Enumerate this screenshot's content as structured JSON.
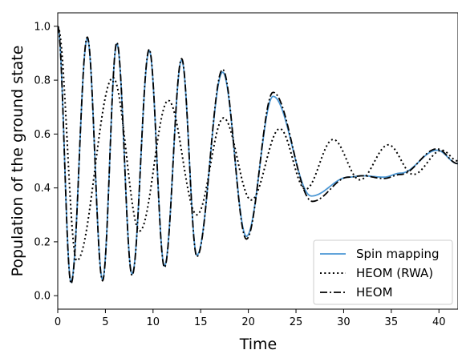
{
  "chart_data": {
    "type": "line",
    "title": "",
    "xlabel": "Time",
    "ylabel": "Population of the ground state",
    "xlim": [
      0,
      42
    ],
    "ylim": [
      -0.05,
      1.05
    ],
    "xticks": [
      "0",
      "5",
      "10",
      "15",
      "20",
      "25",
      "30",
      "35",
      "40"
    ],
    "yticks": [
      "0.0",
      "0.2",
      "0.4",
      "0.6",
      "0.8",
      "1.0"
    ],
    "grid": false,
    "legend_position": "lower-right",
    "colors": {
      "spin_mapping": "#4c97d4",
      "heom_rwa": "#000000",
      "heom": "#000000"
    },
    "series": [
      {
        "name": "Spin mapping",
        "style": "solid",
        "peaks": [
          [
            0,
            1.0
          ],
          [
            1.4,
            0.05
          ],
          [
            3.1,
            0.955
          ],
          [
            4.7,
            0.06
          ],
          [
            6.2,
            0.935
          ],
          [
            7.8,
            0.08
          ],
          [
            9.6,
            0.91
          ],
          [
            11.2,
            0.11
          ],
          [
            13.0,
            0.875
          ],
          [
            14.6,
            0.15
          ],
          [
            17.3,
            0.83
          ],
          [
            19.8,
            0.22
          ],
          [
            22.6,
            0.74
          ],
          [
            26.6,
            0.37
          ],
          [
            30.5,
            0.44
          ],
          [
            32.0,
            0.445
          ],
          [
            34.2,
            0.44
          ],
          [
            36.0,
            0.455
          ],
          [
            39.8,
            0.54
          ],
          [
            42.0,
            0.49
          ]
        ]
      },
      {
        "name": "HEOM (RWA)",
        "style": "dotted",
        "peaks": [
          [
            0,
            1.0
          ],
          [
            2.0,
            0.13
          ],
          [
            5.8,
            0.81
          ],
          [
            8.6,
            0.24
          ],
          [
            11.6,
            0.725
          ],
          [
            14.6,
            0.3
          ],
          [
            17.4,
            0.66
          ],
          [
            20.3,
            0.355
          ],
          [
            23.3,
            0.62
          ],
          [
            26.0,
            0.395
          ],
          [
            28.9,
            0.58
          ],
          [
            31.7,
            0.43
          ],
          [
            34.7,
            0.56
          ],
          [
            37.3,
            0.45
          ],
          [
            40.3,
            0.54
          ],
          [
            42.0,
            0.5
          ]
        ]
      },
      {
        "name": "HEOM",
        "style": "dashdot",
        "peaks": [
          [
            0,
            1.0
          ],
          [
            1.4,
            0.045
          ],
          [
            3.1,
            0.96
          ],
          [
            4.7,
            0.055
          ],
          [
            6.2,
            0.94
          ],
          [
            7.8,
            0.075
          ],
          [
            9.6,
            0.915
          ],
          [
            11.2,
            0.105
          ],
          [
            13.0,
            0.88
          ],
          [
            14.6,
            0.145
          ],
          [
            17.3,
            0.84
          ],
          [
            19.8,
            0.21
          ],
          [
            22.6,
            0.755
          ],
          [
            26.7,
            0.35
          ],
          [
            30.5,
            0.44
          ],
          [
            32.0,
            0.445
          ],
          [
            34.2,
            0.435
          ],
          [
            36.0,
            0.45
          ],
          [
            39.8,
            0.545
          ],
          [
            42.0,
            0.49
          ]
        ]
      }
    ]
  }
}
